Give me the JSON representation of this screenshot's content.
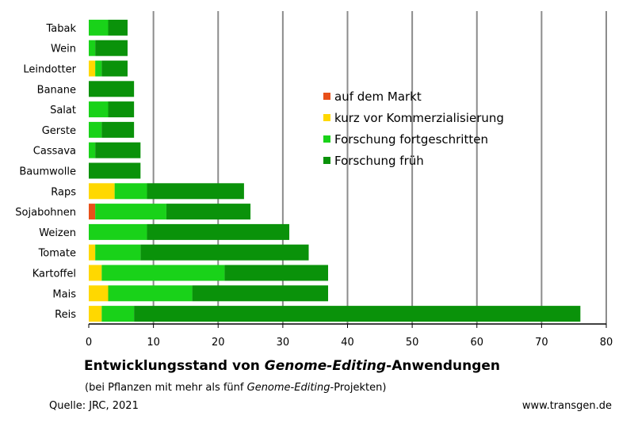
{
  "chart_data": {
    "type": "bar",
    "orientation": "horizontal",
    "stacked": true,
    "categories": [
      "Tabak",
      "Wein",
      "Leindotter",
      "Banane",
      "Salat",
      "Gerste",
      "Cassava",
      "Baumwolle",
      "Raps",
      "Sojabohnen",
      "Weizen",
      "Tomate",
      "Kartoffel",
      "Mais",
      "Reis"
    ],
    "series": [
      {
        "name": "auf dem Markt",
        "color": "#e8501a",
        "values": [
          0,
          0,
          0,
          0,
          0,
          0,
          0,
          0,
          0,
          1,
          0,
          0,
          0,
          0,
          0
        ]
      },
      {
        "name": "kurz vor Kommerzialisierung",
        "color": "#ffd800",
        "values": [
          0,
          0,
          1,
          0,
          0,
          0,
          0,
          0,
          4,
          0,
          0,
          1,
          2,
          3,
          2
        ]
      },
      {
        "name": "Forschung fortgeschritten",
        "color": "#19d219",
        "values": [
          3,
          1,
          1,
          0,
          3,
          2,
          1,
          0,
          5,
          11,
          9,
          7,
          19,
          13,
          5
        ]
      },
      {
        "name": "Forschung früh",
        "color": "#0a920a",
        "values": [
          3,
          5,
          4,
          7,
          4,
          5,
          7,
          8,
          15,
          13,
          22,
          26,
          16,
          21,
          69
        ]
      }
    ],
    "xlim": [
      0,
      80
    ],
    "xticks": [
      "0",
      "10",
      "20",
      "30",
      "40",
      "50",
      "60",
      "70",
      "80"
    ],
    "grid": true,
    "legend_position": "top-right",
    "title_parts": [
      {
        "text": "Entwicklungsstand von ",
        "italic": false
      },
      {
        "text": "Genome-Editing",
        "italic": true
      },
      {
        "text": "-Anwendungen",
        "italic": false
      }
    ],
    "subtitle_parts": [
      {
        "text": "(bei Pflanzen mit mehr als fünf ",
        "italic": false
      },
      {
        "text": "Genome-Editing",
        "italic": true
      },
      {
        "text": "-Projekten)",
        "italic": false
      }
    ],
    "source": "Quelle: JRC, 2021",
    "website": "www.transgen.de"
  }
}
